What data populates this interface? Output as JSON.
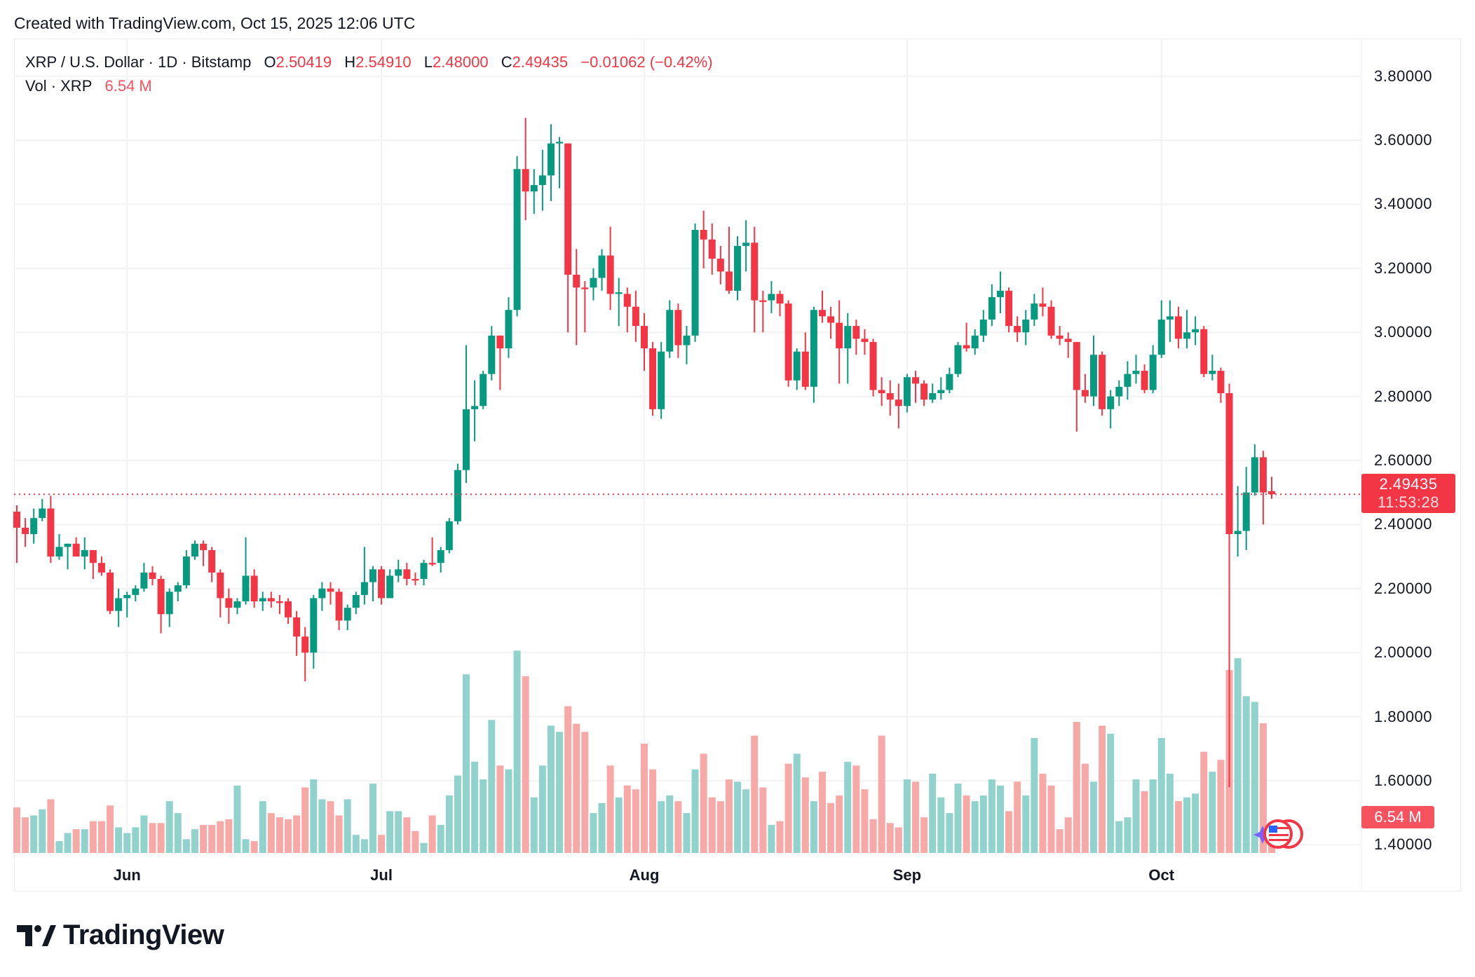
{
  "header": {
    "created": "Created with TradingView.com, Oct 15, 2025 12:06 UTC"
  },
  "legend": {
    "symbol": "XRP / U.S. Dollar · 1D · Bitstamp",
    "o_label": "O",
    "open": "2.50419",
    "h_label": "H",
    "high": "2.54910",
    "l_label": "L",
    "low": "2.48000",
    "c_label": "C",
    "close": "2.49435",
    "change": "−0.01062 (−0.42%)",
    "vol_label": "Vol · XRP",
    "vol_value": "6.54 M"
  },
  "price_axis": {
    "ticks": [
      "3.80000",
      "3.60000",
      "3.40000",
      "3.20000",
      "3.00000",
      "2.80000",
      "2.60000",
      "2.40000",
      "2.20000",
      "2.00000",
      "1.80000",
      "1.60000",
      "1.40000"
    ],
    "last_price": "2.49435",
    "countdown": "11:53:28",
    "last_volume": "6.54 M"
  },
  "brand": {
    "name": "TradingView"
  },
  "colors": {
    "up": "#089981",
    "down": "#F23645",
    "vol_up": "#92D2CC",
    "vol_down": "#F7A9A7",
    "grid": "#F2F2F2"
  },
  "chart_data": {
    "type": "candlestick",
    "title": "XRP / U.S. Dollar · 1D · Bitstamp",
    "ylim": [
      1.4,
      3.8
    ],
    "grid": true,
    "month_ticks": [
      {
        "label": "Jun",
        "index": 13
      },
      {
        "label": "Jul",
        "index": 43
      },
      {
        "label": "Aug",
        "index": 74
      },
      {
        "label": "Sep",
        "index": 105
      },
      {
        "label": "Oct",
        "index": 135
      }
    ],
    "ohlc": [
      [
        2.44,
        2.46,
        2.28,
        2.39
      ],
      [
        2.39,
        2.42,
        2.33,
        2.37
      ],
      [
        2.37,
        2.45,
        2.34,
        2.42
      ],
      [
        2.42,
        2.48,
        2.41,
        2.45
      ],
      [
        2.45,
        2.49,
        2.28,
        2.3
      ],
      [
        2.3,
        2.37,
        2.29,
        2.33
      ],
      [
        2.33,
        2.34,
        2.26,
        2.34
      ],
      [
        2.34,
        2.36,
        2.31,
        2.3
      ],
      [
        2.3,
        2.36,
        2.26,
        2.32
      ],
      [
        2.32,
        2.32,
        2.23,
        2.28
      ],
      [
        2.28,
        2.3,
        2.24,
        2.25
      ],
      [
        2.25,
        2.26,
        2.12,
        2.13
      ],
      [
        2.13,
        2.2,
        2.08,
        2.17
      ],
      [
        2.17,
        2.19,
        2.11,
        2.18
      ],
      [
        2.18,
        2.21,
        2.16,
        2.2
      ],
      [
        2.2,
        2.28,
        2.19,
        2.25
      ],
      [
        2.25,
        2.27,
        2.21,
        2.23
      ],
      [
        2.23,
        2.24,
        2.06,
        2.12
      ],
      [
        2.12,
        2.2,
        2.08,
        2.19
      ],
      [
        2.19,
        2.22,
        2.16,
        2.21
      ],
      [
        2.21,
        2.32,
        2.2,
        2.3
      ],
      [
        2.3,
        2.35,
        2.29,
        2.34
      ],
      [
        2.34,
        2.35,
        2.27,
        2.32
      ],
      [
        2.32,
        2.33,
        2.22,
        2.25
      ],
      [
        2.25,
        2.26,
        2.11,
        2.17
      ],
      [
        2.17,
        2.2,
        2.09,
        2.14
      ],
      [
        2.14,
        2.17,
        2.12,
        2.16
      ],
      [
        2.16,
        2.36,
        2.15,
        2.24
      ],
      [
        2.24,
        2.26,
        2.14,
        2.16
      ],
      [
        2.16,
        2.19,
        2.13,
        2.17
      ],
      [
        2.17,
        2.19,
        2.14,
        2.16
      ],
      [
        2.16,
        2.18,
        2.12,
        2.155
      ],
      [
        2.16,
        2.17,
        2.09,
        2.11
      ],
      [
        2.11,
        2.13,
        1.99,
        2.05
      ],
      [
        2.05,
        2.08,
        1.91,
        2.0
      ],
      [
        2.0,
        2.18,
        1.95,
        2.17
      ],
      [
        2.17,
        2.22,
        2.13,
        2.2
      ],
      [
        2.2,
        2.22,
        2.15,
        2.19
      ],
      [
        2.19,
        2.2,
        2.07,
        2.1
      ],
      [
        2.1,
        2.15,
        2.07,
        2.14
      ],
      [
        2.14,
        2.19,
        2.12,
        2.18
      ],
      [
        2.18,
        2.33,
        2.15,
        2.22
      ],
      [
        2.22,
        2.27,
        2.16,
        2.26
      ],
      [
        2.26,
        2.27,
        2.15,
        2.17
      ],
      [
        2.17,
        2.26,
        2.17,
        2.24
      ],
      [
        2.24,
        2.29,
        2.22,
        2.26
      ],
      [
        2.26,
        2.28,
        2.21,
        2.23
      ],
      [
        2.23,
        2.25,
        2.21,
        2.225
      ],
      [
        2.23,
        2.29,
        2.21,
        2.28
      ],
      [
        2.28,
        2.36,
        2.27,
        2.275
      ],
      [
        2.28,
        2.33,
        2.25,
        2.32
      ],
      [
        2.32,
        2.42,
        2.31,
        2.41
      ],
      [
        2.41,
        2.59,
        2.4,
        2.57
      ],
      [
        2.57,
        2.96,
        2.53,
        2.76
      ],
      [
        2.76,
        2.85,
        2.66,
        2.77
      ],
      [
        2.77,
        2.88,
        2.76,
        2.87
      ],
      [
        2.87,
        3.02,
        2.85,
        2.99
      ],
      [
        2.99,
        2.99,
        2.82,
        2.95
      ],
      [
        2.95,
        3.11,
        2.92,
        3.07
      ],
      [
        3.07,
        3.55,
        3.05,
        3.51
      ],
      [
        3.51,
        3.67,
        3.35,
        3.44
      ],
      [
        3.44,
        3.51,
        3.37,
        3.46
      ],
      [
        3.46,
        3.57,
        3.38,
        3.49
      ],
      [
        3.49,
        3.65,
        3.41,
        3.59
      ],
      [
        3.59,
        3.61,
        3.45,
        3.595
      ],
      [
        3.59,
        3.59,
        3.0,
        3.18
      ],
      [
        3.18,
        3.26,
        2.96,
        3.14
      ],
      [
        3.14,
        3.16,
        3.0,
        3.135
      ],
      [
        3.14,
        3.2,
        3.1,
        3.17
      ],
      [
        3.17,
        3.26,
        3.13,
        3.24
      ],
      [
        3.24,
        3.33,
        3.07,
        3.12
      ],
      [
        3.12,
        3.17,
        3.02,
        3.125
      ],
      [
        3.12,
        3.14,
        3.0,
        3.08
      ],
      [
        3.08,
        3.13,
        2.97,
        3.02
      ],
      [
        3.02,
        3.06,
        2.88,
        2.95
      ],
      [
        2.95,
        2.97,
        2.74,
        2.76
      ],
      [
        2.76,
        2.97,
        2.73,
        2.94
      ],
      [
        2.94,
        3.1,
        2.92,
        3.07
      ],
      [
        3.07,
        3.09,
        2.92,
        2.96
      ],
      [
        2.96,
        3.02,
        2.9,
        2.99
      ],
      [
        2.99,
        3.34,
        2.97,
        3.32
      ],
      [
        3.32,
        3.38,
        3.2,
        3.29
      ],
      [
        3.29,
        3.34,
        3.18,
        3.23
      ],
      [
        3.23,
        3.27,
        3.15,
        3.19
      ],
      [
        3.19,
        3.33,
        3.12,
        3.13
      ],
      [
        3.13,
        3.3,
        3.1,
        3.27
      ],
      [
        3.27,
        3.35,
        3.19,
        3.28
      ],
      [
        3.28,
        3.33,
        3.0,
        3.1
      ],
      [
        3.1,
        3.13,
        3.0,
        3.095
      ],
      [
        3.1,
        3.16,
        3.06,
        3.12
      ],
      [
        3.12,
        3.13,
        3.05,
        3.09
      ],
      [
        3.09,
        3.1,
        2.83,
        2.85
      ],
      [
        2.85,
        2.95,
        2.82,
        2.94
      ],
      [
        2.94,
        3.0,
        2.82,
        2.83
      ],
      [
        2.83,
        3.08,
        2.78,
        3.07
      ],
      [
        3.07,
        3.13,
        3.03,
        3.05
      ],
      [
        3.05,
        3.08,
        2.98,
        3.03
      ],
      [
        3.03,
        3.1,
        2.84,
        2.95
      ],
      [
        2.95,
        3.06,
        2.84,
        3.02
      ],
      [
        3.02,
        3.04,
        2.93,
        2.98
      ],
      [
        2.98,
        3.01,
        2.93,
        2.97
      ],
      [
        2.97,
        2.98,
        2.8,
        2.82
      ],
      [
        2.82,
        2.86,
        2.77,
        2.81
      ],
      [
        2.81,
        2.85,
        2.74,
        2.79
      ],
      [
        2.79,
        2.84,
        2.7,
        2.77
      ],
      [
        2.77,
        2.87,
        2.75,
        2.86
      ],
      [
        2.86,
        2.88,
        2.78,
        2.84
      ],
      [
        2.84,
        2.85,
        2.77,
        2.79
      ],
      [
        2.79,
        2.84,
        2.78,
        2.81
      ],
      [
        2.81,
        2.86,
        2.79,
        2.82
      ],
      [
        2.82,
        2.89,
        2.81,
        2.87
      ],
      [
        2.87,
        2.97,
        2.86,
        2.96
      ],
      [
        2.96,
        3.03,
        2.94,
        2.95
      ],
      [
        2.95,
        3.01,
        2.93,
        2.99
      ],
      [
        2.99,
        3.07,
        2.97,
        3.04
      ],
      [
        3.04,
        3.15,
        3.02,
        3.11
      ],
      [
        3.11,
        3.19,
        3.06,
        3.13
      ],
      [
        3.13,
        3.14,
        3.0,
        3.02
      ],
      [
        3.02,
        3.05,
        2.97,
        3.0
      ],
      [
        3.0,
        3.07,
        2.96,
        3.04
      ],
      [
        3.04,
        3.12,
        3.02,
        3.09
      ],
      [
        3.09,
        3.14,
        3.05,
        3.08
      ],
      [
        3.08,
        3.1,
        2.98,
        2.99
      ],
      [
        2.99,
        3.02,
        2.96,
        2.98
      ],
      [
        2.98,
        3.0,
        2.92,
        2.97
      ],
      [
        2.97,
        2.97,
        2.69,
        2.82
      ],
      [
        2.82,
        2.87,
        2.78,
        2.8
      ],
      [
        2.8,
        2.99,
        2.77,
        2.93
      ],
      [
        2.93,
        2.94,
        2.74,
        2.76
      ],
      [
        2.76,
        2.82,
        2.7,
        2.8
      ],
      [
        2.8,
        2.85,
        2.77,
        2.83
      ],
      [
        2.83,
        2.91,
        2.79,
        2.87
      ],
      [
        2.87,
        2.93,
        2.84,
        2.88
      ],
      [
        2.88,
        2.9,
        2.81,
        2.82
      ],
      [
        2.82,
        2.96,
        2.81,
        2.93
      ],
      [
        2.93,
        3.1,
        2.92,
        3.04
      ],
      [
        3.04,
        3.1,
        2.97,
        3.05
      ],
      [
        3.05,
        3.08,
        2.95,
        2.98
      ],
      [
        2.98,
        3.07,
        2.95,
        3.0
      ],
      [
        3.0,
        3.05,
        2.96,
        3.01
      ],
      [
        3.01,
        3.02,
        2.86,
        2.87
      ],
      [
        2.87,
        2.93,
        2.85,
        2.88
      ],
      [
        2.88,
        2.89,
        2.78,
        2.81
      ],
      [
        2.81,
        2.84,
        1.58,
        2.37
      ],
      [
        2.37,
        2.52,
        2.3,
        2.38
      ],
      [
        2.38,
        2.58,
        2.32,
        2.5
      ],
      [
        2.5,
        2.65,
        2.49,
        2.61
      ],
      [
        2.61,
        2.63,
        2.4,
        2.5
      ],
      [
        2.50419,
        2.5491,
        2.48,
        2.49435
      ]
    ],
    "volume_millions": [
      9.6,
      7.5,
      7.9,
      9.2,
      11.3,
      2.5,
      4.2,
      5.0,
      5.0,
      6.7,
      6.7,
      10.0,
      5.4,
      4.2,
      5.4,
      7.9,
      6.3,
      6.3,
      10.9,
      8.4,
      2.9,
      5.0,
      5.9,
      5.9,
      6.7,
      7.1,
      14.2,
      2.9,
      2.5,
      10.9,
      8.4,
      7.5,
      7.1,
      7.9,
      13.8,
      15.5,
      11.3,
      10.9,
      7.9,
      11.3,
      3.8,
      2.9,
      14.6,
      3.8,
      8.8,
      8.8,
      7.5,
      4.6,
      2.1,
      7.9,
      5.9,
      12.1,
      16.3,
      37.6,
      19.2,
      15.5,
      28.0,
      18.4,
      17.6,
      42.6,
      37.2,
      11.7,
      18.4,
      26.8,
      25.5,
      30.9,
      27.2,
      25.5,
      8.4,
      10.5,
      18.4,
      11.7,
      14.2,
      13.4,
      23.0,
      17.6,
      10.9,
      12.1,
      10.9,
      8.4,
      17.6,
      20.9,
      11.7,
      10.9,
      15.5,
      15.0,
      13.4,
      24.7,
      13.8,
      5.9,
      6.7,
      18.8,
      20.9,
      15.9,
      10.9,
      17.1,
      10.5,
      12.1,
      19.2,
      18.4,
      13.4,
      7.1,
      24.7,
      6.3,
      5.4,
      15.5,
      15.0,
      7.5,
      16.7,
      11.7,
      8.4,
      14.6,
      12.1,
      10.9,
      12.1,
      15.5,
      14.2,
      8.8,
      15.0,
      12.1,
      24.2,
      16.7,
      14.2,
      5.0,
      7.5,
      27.6,
      18.8,
      15.0,
      26.8,
      25.1,
      6.7,
      7.5,
      15.5,
      13.0,
      15.5,
      24.2,
      16.7,
      10.9,
      11.7,
      12.5,
      21.3,
      17.1,
      19.6,
      38.5,
      41.0,
      33.0,
      31.8,
      27.3,
      6.54
    ]
  }
}
